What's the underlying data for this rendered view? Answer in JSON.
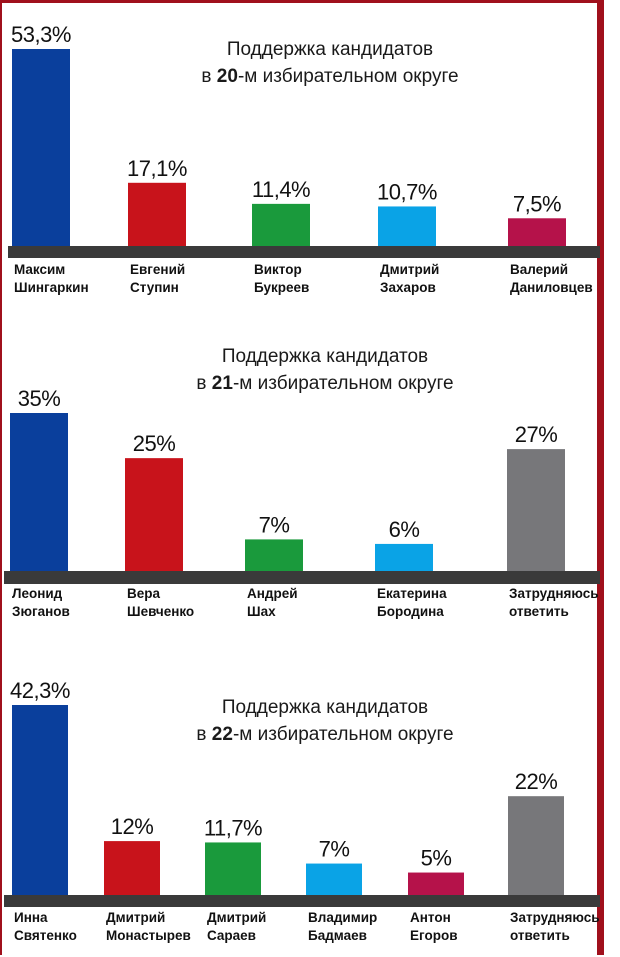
{
  "chart_data": [
    {
      "type": "bar",
      "title_prefix": "Поддержка кандидатов",
      "title_line2_pre": "в ",
      "title_line2_num": "20",
      "title_line2_post": "-м избирательном округе",
      "categories": [
        "Максим Шингаркин",
        "Евгений Ступин",
        "Виктор Букреев",
        "Дмитрий Захаров",
        "Валерий Даниловцев"
      ],
      "category_lines": [
        [
          "Максим",
          "Шингаркин"
        ],
        [
          "Евгений",
          "Ступин"
        ],
        [
          "Виктор",
          "Букреев"
        ],
        [
          "Дмитрий",
          "Захаров"
        ],
        [
          "Валерий",
          "Даниловцев"
        ]
      ],
      "values": [
        53.3,
        17.1,
        11.4,
        10.7,
        7.5
      ],
      "value_labels": [
        "53,3%",
        "17,1%",
        "11,4%",
        "10,7%",
        "7,5%"
      ],
      "colors": [
        "#0a3f9c",
        "#c8131b",
        "#1a9a3c",
        "#0aa3e6",
        "#b5124a"
      ],
      "ylim": [
        0,
        53.3
      ]
    },
    {
      "type": "bar",
      "title_prefix": "Поддержка кандидатов",
      "title_line2_pre": "в ",
      "title_line2_num": "21",
      "title_line2_post": "-м избирательном округе",
      "categories": [
        "Леонид Зюганов",
        "Вера Шевченко",
        "Андрей Шах",
        "Екатерина Бородина",
        "Затрудняюсь ответить"
      ],
      "category_lines": [
        [
          "Леонид",
          "Зюганов"
        ],
        [
          "Вера",
          "Шевченко"
        ],
        [
          "Андрей",
          "Шах"
        ],
        [
          "Екатерина",
          "Бородина"
        ],
        [
          "Затрудняюсь",
          "ответить"
        ]
      ],
      "values": [
        35,
        25,
        7,
        6,
        27
      ],
      "value_labels": [
        "35%",
        "25%",
        "7%",
        "6%",
        "27%"
      ],
      "colors": [
        "#0a3f9c",
        "#c8131b",
        "#1a9a3c",
        "#0aa3e6",
        "#77777a"
      ],
      "ylim": [
        0,
        35
      ]
    },
    {
      "type": "bar",
      "title_prefix": "Поддержка кандидатов",
      "title_line2_pre": "в ",
      "title_line2_num": "22",
      "title_line2_post": "-м избирательном округе",
      "categories": [
        "Инна Святенко",
        "Дмитрий Монастырев",
        "Дмитрий Сараев",
        "Владимир Бадмаев",
        "Антон Егоров",
        "Затрудняюсь ответить"
      ],
      "category_lines": [
        [
          "Инна",
          "Святенко"
        ],
        [
          "Дмитрий",
          "Монастырев"
        ],
        [
          "Дмитрий",
          "Сараев"
        ],
        [
          "Владимир",
          "Бадмаев"
        ],
        [
          "Антон",
          "Егоров"
        ],
        [
          "Затрудняюсь",
          "ответить"
        ]
      ],
      "values": [
        42.3,
        12,
        11.7,
        7,
        5,
        22
      ],
      "value_labels": [
        "42,3%",
        "12%",
        "11,7%",
        "7%",
        "5%",
        "22%"
      ],
      "colors": [
        "#0a3f9c",
        "#c8131b",
        "#1a9a3c",
        "#0aa3e6",
        "#b5124a",
        "#77777a"
      ],
      "ylim": [
        0,
        42.3
      ]
    }
  ]
}
